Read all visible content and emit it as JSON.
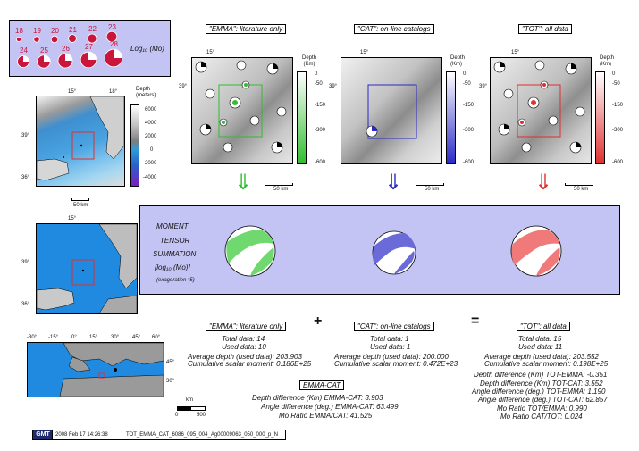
{
  "magnitude_legend": {
    "row1": [
      "18",
      "19",
      "20",
      "21",
      "22",
      "23"
    ],
    "row2": [
      "24",
      "25",
      "26",
      "27",
      "28"
    ],
    "label": "Log₁₀ (Mo)"
  },
  "panels": {
    "emma": {
      "title": "\"EMMA\": literature only",
      "lon": "15°",
      "lat": "39°",
      "depth_unit": "Depth\n(Km)",
      "scale": "50 km",
      "color": "#2fbf2f",
      "arrow": "⇓"
    },
    "cat": {
      "title": "\"CAT\": on-line catalogs",
      "lon": "15°",
      "lat": "39°",
      "depth_unit": "Depth\n(Km)",
      "scale": "50 km",
      "color": "#2a2ac8",
      "arrow": "⇓"
    },
    "tot": {
      "title": "\"TOT\": all data",
      "lon": "15°",
      "lat": "39°",
      "depth_unit": "Depth\n(Km)",
      "scale": "50 km",
      "color": "#e03030",
      "arrow": "⇓"
    }
  },
  "depth_ticks": [
    "0",
    "-50",
    "-150",
    "-300",
    "-600"
  ],
  "topo_map": {
    "lon1": "15°",
    "lon2": "18°",
    "lat1": "39°",
    "lat2": "36°",
    "scale": "50 km",
    "colorbar_title": "Depth\n(meters)",
    "colorbar_ticks": [
      "6000",
      "4000",
      "2000",
      "0",
      "-2000",
      "-4000"
    ]
  },
  "second_map": {
    "lon": "15°",
    "lat1": "39°",
    "lat2": "36°"
  },
  "world_map": {
    "lon_ticks": [
      "-30°",
      "-15°",
      "0°",
      "15°",
      "30°",
      "45°",
      "60°"
    ],
    "lat_ticks": [
      "45°",
      "30°"
    ],
    "scale_label": "km",
    "scale_ticks": [
      "0",
      "500"
    ]
  },
  "summation": {
    "line1": "MOMENT",
    "line2": "TENSOR",
    "line3": "SUMMATION",
    "line4": "[log₁₀ (Mo)]",
    "line5": "(exageration *5)"
  },
  "results": {
    "emma": {
      "title": "\"EMMA\": literature only",
      "total": "Total data:   14",
      "used": "Used data:   10",
      "avgdepth": "Average depth (used data):   203.903",
      "moment": "Cumulative scalar moment:  0.186E+25"
    },
    "cat": {
      "title": "\"CAT\": on-line catalogs",
      "total": "Total data:     1",
      "used": "Used data:     1",
      "avgdepth": "Average depth (used data):   200.000",
      "moment": "Cumulative scalar moment:  0.472E+23"
    },
    "tot": {
      "title": "\"TOT\": all data",
      "total": "Total data:   15",
      "used": "Used data:   11",
      "avgdepth": "Average depth (used data):   203.552",
      "moment": "Cumulative scalar moment:  0.198E+25"
    },
    "plus": "+",
    "equals": "="
  },
  "differences_emma_cat": {
    "tag": "EMMA-CAT",
    "lines": [
      "Depth difference (Km) EMMA-CAT:    3.903",
      "Angle difference (deg.) EMMA-CAT:    63.499",
      "Mo Ratio EMMA/CAT:    41.525"
    ]
  },
  "differences_tot": {
    "lines": [
      "Depth difference (Km) TOT-EMMA:     -0.351",
      "Depth difference (Km) TOT-CAT:     3.552",
      "Angle difference (deg.) TOT-EMMA:     1.190",
      "Angle difference (deg.) TOT-CAT:     62.857",
      "Mo Ratio TOT/EMMA:     0.990",
      "Mo Ratio CAT/TOT:     0.024"
    ]
  },
  "footer": {
    "logo": "GMT",
    "timestamp": "2008 Feb 17 14:26:38",
    "filename": "TOT_EMMA_CAT_6086_095_004_Ag00009063_050_000_p_N"
  }
}
